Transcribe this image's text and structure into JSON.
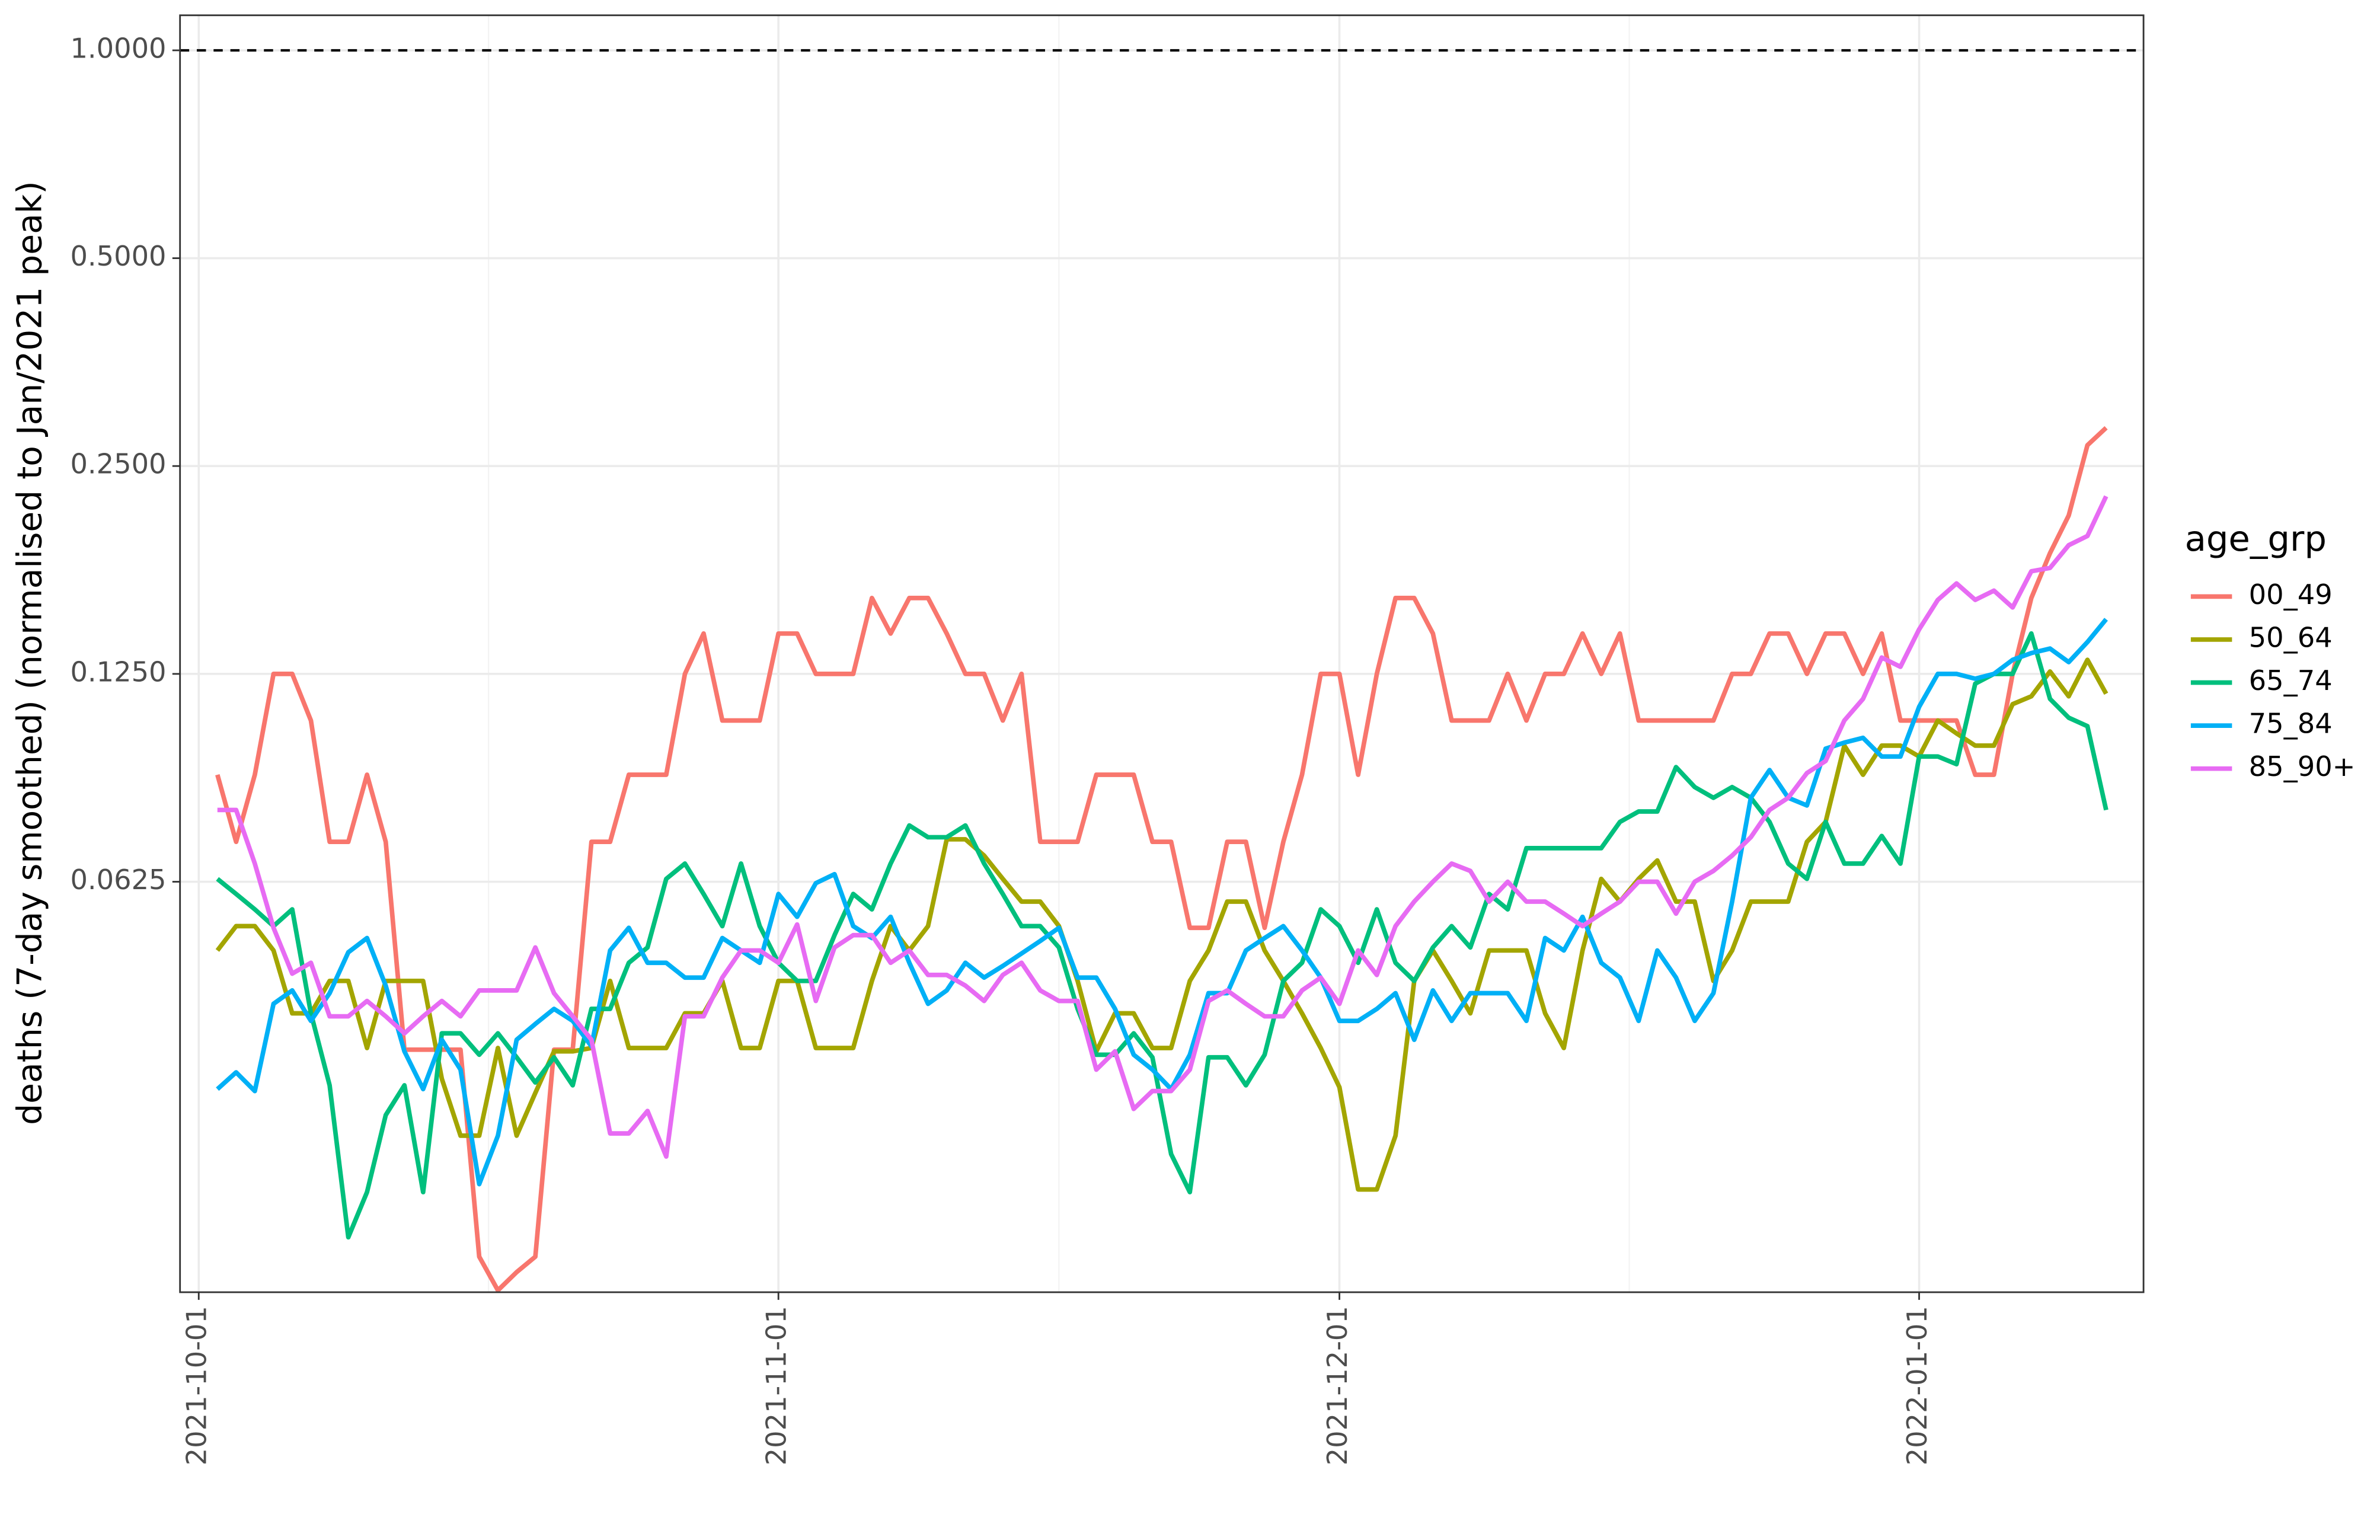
{
  "chart_data": {
    "type": "line",
    "y_label": "deaths (7-day smoothed) (normalised to Jan/2021 peak)",
    "legend_title": "age_grp",
    "legend_position": "right",
    "ylog": true,
    "grid": true,
    "hline": 1,
    "xlim": [
      "2021-09-30",
      "2022-01-13"
    ],
    "xticks": [
      "2021-10-01",
      "2021-11-01",
      "2021-12-01",
      "2022-01-01"
    ],
    "ylim": [
      0.0159,
      1.124
    ],
    "yticks": [
      0.0625,
      {
        "value": 0.125,
        "label": "0.1250"
      },
      {
        "value": 0.25,
        "label": "0.2500"
      },
      {
        "value": 0.5,
        "label": "0.5000"
      },
      {
        "value": 1,
        "label": "1.0000"
      }
    ],
    "x": [
      "2021-10-02",
      "2021-10-03",
      "2021-10-04",
      "2021-10-05",
      "2021-10-06",
      "2021-10-07",
      "2021-10-08",
      "2021-10-09",
      "2021-10-10",
      "2021-10-11",
      "2021-10-12",
      "2021-10-13",
      "2021-10-14",
      "2021-10-15",
      "2021-10-16",
      "2021-10-17",
      "2021-10-18",
      "2021-10-19",
      "2021-10-20",
      "2021-10-21",
      "2021-10-22",
      "2021-10-23",
      "2021-10-24",
      "2021-10-25",
      "2021-10-26",
      "2021-10-27",
      "2021-10-28",
      "2021-10-29",
      "2021-10-30",
      "2021-10-31",
      "2021-11-01",
      "2021-11-02",
      "2021-11-03",
      "2021-11-04",
      "2021-11-05",
      "2021-11-06",
      "2021-11-07",
      "2021-11-08",
      "2021-11-09",
      "2021-11-10",
      "2021-11-11",
      "2021-11-12",
      "2021-11-13",
      "2021-11-14",
      "2021-11-15",
      "2021-11-16",
      "2021-11-17",
      "2021-11-18",
      "2021-11-19",
      "2021-11-20",
      "2021-11-21",
      "2021-11-22",
      "2021-11-23",
      "2021-11-24",
      "2021-11-25",
      "2021-11-26",
      "2021-11-27",
      "2021-11-28",
      "2021-11-29",
      "2021-11-30",
      "2021-12-01",
      "2021-12-02",
      "2021-12-03",
      "2021-12-04",
      "2021-12-05",
      "2021-12-06",
      "2021-12-07",
      "2021-12-08",
      "2021-12-09",
      "2021-12-10",
      "2021-12-11",
      "2021-12-12",
      "2021-12-13",
      "2021-12-14",
      "2021-12-15",
      "2021-12-16",
      "2021-12-17",
      "2021-12-18",
      "2021-12-19",
      "2021-12-20",
      "2021-12-21",
      "2021-12-22",
      "2021-12-23",
      "2021-12-24",
      "2021-12-25",
      "2021-12-26",
      "2021-12-27",
      "2021-12-28",
      "2021-12-29",
      "2021-12-30",
      "2021-12-31",
      "2022-01-01",
      "2022-01-02",
      "2022-01-03",
      "2022-01-04",
      "2022-01-05",
      "2022-01-06",
      "2022-01-07",
      "2022-01-08",
      "2022-01-09",
      "2022-01-10",
      "2022-01-11"
    ],
    "series": [
      {
        "name": "00_49",
        "color": "#F8766D",
        "values": [
          0.0893,
          0.0714,
          0.0893,
          0.125,
          0.125,
          0.107,
          0.0714,
          0.0714,
          0.0893,
          0.0714,
          0.0357,
          0.0357,
          0.0357,
          0.0357,
          0.0179,
          0.016,
          0.017,
          0.0179,
          0.0357,
          0.0357,
          0.0714,
          0.0714,
          0.0893,
          0.0893,
          0.0893,
          0.125,
          0.143,
          0.107,
          0.107,
          0.107,
          0.143,
          0.143,
          0.125,
          0.125,
          0.125,
          0.161,
          0.143,
          0.161,
          0.161,
          0.143,
          0.125,
          0.125,
          0.107,
          0.125,
          0.0714,
          0.0714,
          0.0714,
          0.0893,
          0.0893,
          0.0893,
          0.0714,
          0.0714,
          0.0536,
          0.0536,
          0.0714,
          0.0714,
          0.0536,
          0.0714,
          0.0893,
          0.125,
          0.125,
          0.0893,
          0.125,
          0.161,
          0.161,
          0.143,
          0.107,
          0.107,
          0.107,
          0.125,
          0.107,
          0.125,
          0.125,
          0.143,
          0.125,
          0.143,
          0.107,
          0.107,
          0.107,
          0.107,
          0.107,
          0.125,
          0.125,
          0.143,
          0.143,
          0.125,
          0.143,
          0.143,
          0.125,
          0.143,
          0.107,
          0.107,
          0.107,
          0.107,
          0.0893,
          0.0893,
          0.125,
          0.161,
          0.187,
          0.212,
          0.268,
          0.284
        ]
      },
      {
        "name": "50_64",
        "color": "#A3A500",
        "values": [
          0.0497,
          0.0539,
          0.0539,
          0.0497,
          0.0403,
          0.0403,
          0.0449,
          0.0449,
          0.0359,
          0.0449,
          0.0449,
          0.0449,
          0.0324,
          0.0268,
          0.0268,
          0.0359,
          0.0268,
          0.0309,
          0.0355,
          0.0355,
          0.0359,
          0.0449,
          0.0359,
          0.0359,
          0.0359,
          0.0403,
          0.0403,
          0.0449,
          0.0359,
          0.0359,
          0.0449,
          0.0449,
          0.0359,
          0.0359,
          0.0359,
          0.0449,
          0.0539,
          0.0497,
          0.0539,
          0.072,
          0.072,
          0.0682,
          0.0631,
          0.0585,
          0.0585,
          0.0539,
          0.0449,
          0.0355,
          0.0403,
          0.0403,
          0.0359,
          0.0359,
          0.0449,
          0.0497,
          0.0585,
          0.0585,
          0.0497,
          0.0449,
          0.0403,
          0.0359,
          0.0315,
          0.0224,
          0.0224,
          0.0268,
          0.0449,
          0.0497,
          0.0449,
          0.0403,
          0.0497,
          0.0497,
          0.0497,
          0.0403,
          0.0359,
          0.0497,
          0.0631,
          0.0585,
          0.0631,
          0.0671,
          0.0585,
          0.0585,
          0.0449,
          0.0497,
          0.0585,
          0.0585,
          0.0585,
          0.0714,
          0.0763,
          0.0984,
          0.0893,
          0.0984,
          0.0984,
          0.0949,
          0.107,
          0.1025,
          0.0984,
          0.0984,
          0.113,
          0.116,
          0.126,
          0.116,
          0.131,
          0.117
        ]
      },
      {
        "name": "65_74",
        "color": "#00BF7D",
        "values": [
          0.0631,
          0.06,
          0.057,
          0.0539,
          0.057,
          0.0403,
          0.0317,
          0.0191,
          0.0222,
          0.0287,
          0.0317,
          0.0222,
          0.0377,
          0.0377,
          0.0351,
          0.0377,
          0.0348,
          0.032,
          0.0348,
          0.0317,
          0.0409,
          0.0409,
          0.0477,
          0.0502,
          0.0631,
          0.0664,
          0.06,
          0.0539,
          0.0664,
          0.0539,
          0.0477,
          0.0449,
          0.0449,
          0.0523,
          0.06,
          0.057,
          0.0664,
          0.0754,
          0.0725,
          0.0725,
          0.0754,
          0.0664,
          0.06,
          0.0539,
          0.0539,
          0.0502,
          0.0409,
          0.0351,
          0.0351,
          0.0377,
          0.0348,
          0.0252,
          0.0222,
          0.0348,
          0.0348,
          0.0317,
          0.0351,
          0.0449,
          0.0477,
          0.057,
          0.0539,
          0.0477,
          0.057,
          0.0477,
          0.0449,
          0.0502,
          0.0539,
          0.0502,
          0.06,
          0.057,
          0.0699,
          0.0699,
          0.0699,
          0.0699,
          0.0699,
          0.0763,
          0.079,
          0.079,
          0.0916,
          0.0857,
          0.0827,
          0.0857,
          0.0827,
          0.0763,
          0.0664,
          0.0631,
          0.0763,
          0.0664,
          0.0664,
          0.0728,
          0.0664,
          0.0949,
          0.0949,
          0.0925,
          0.121,
          0.125,
          0.125,
          0.143,
          0.115,
          0.108,
          0.105,
          0.0794
        ]
      },
      {
        "name": "75_84",
        "color": "#00B0F6",
        "values": [
          0.0313,
          0.0331,
          0.0311,
          0.0416,
          0.0435,
          0.0393,
          0.0431,
          0.0494,
          0.0518,
          0.0442,
          0.0355,
          0.0313,
          0.0369,
          0.0334,
          0.0228,
          0.0268,
          0.0369,
          0.0389,
          0.0409,
          0.0393,
          0.0361,
          0.0497,
          0.0536,
          0.0477,
          0.0477,
          0.0454,
          0.0454,
          0.0518,
          0.0497,
          0.0477,
          0.06,
          0.0556,
          0.0622,
          0.0641,
          0.0539,
          0.0518,
          0.0556,
          0.0477,
          0.0416,
          0.0435,
          0.0477,
          0.0454,
          0.0472,
          0.0492,
          0.0513,
          0.0536,
          0.0454,
          0.0454,
          0.0409,
          0.0351,
          0.0334,
          0.0313,
          0.0351,
          0.0431,
          0.0431,
          0.0497,
          0.0518,
          0.0539,
          0.0497,
          0.0454,
          0.0393,
          0.0393,
          0.0409,
          0.0431,
          0.0369,
          0.0435,
          0.0393,
          0.0431,
          0.0431,
          0.0431,
          0.0393,
          0.0518,
          0.0497,
          0.0556,
          0.0477,
          0.0454,
          0.0393,
          0.0497,
          0.0454,
          0.0393,
          0.0431,
          0.0585,
          0.0827,
          0.0907,
          0.0827,
          0.0806,
          0.0974,
          0.0994,
          0.101,
          0.0949,
          0.0949,
          0.112,
          0.125,
          0.125,
          0.123,
          0.125,
          0.131,
          0.134,
          0.136,
          0.13,
          0.139,
          0.15
        ]
      },
      {
        "name": "85_90+",
        "color": "#E76BF3",
        "values": [
          0.0794,
          0.0794,
          0.0664,
          0.0536,
          0.046,
          0.0477,
          0.0399,
          0.0399,
          0.042,
          0.0399,
          0.0377,
          0.0399,
          0.042,
          0.0399,
          0.0435,
          0.0435,
          0.0435,
          0.0502,
          0.0431,
          0.0399,
          0.0369,
          0.027,
          0.027,
          0.0291,
          0.025,
          0.0399,
          0.0399,
          0.0454,
          0.0497,
          0.0497,
          0.0477,
          0.0542,
          0.042,
          0.0502,
          0.0523,
          0.0523,
          0.0477,
          0.0497,
          0.0458,
          0.0458,
          0.0442,
          0.042,
          0.0458,
          0.0477,
          0.0435,
          0.042,
          0.042,
          0.0334,
          0.0355,
          0.0293,
          0.0311,
          0.0311,
          0.0334,
          0.042,
          0.0435,
          0.0416,
          0.0399,
          0.0399,
          0.0435,
          0.0454,
          0.0416,
          0.0497,
          0.0458,
          0.0539,
          0.0585,
          0.0625,
          0.0664,
          0.0648,
          0.0585,
          0.0625,
          0.0585,
          0.0585,
          0.0562,
          0.0539,
          0.0562,
          0.0585,
          0.0625,
          0.0625,
          0.0562,
          0.0625,
          0.0648,
          0.0682,
          0.0725,
          0.0794,
          0.0827,
          0.0898,
          0.0935,
          0.107,
          0.115,
          0.132,
          0.128,
          0.145,
          0.16,
          0.169,
          0.16,
          0.165,
          0.156,
          0.176,
          0.178,
          0.192,
          0.198,
          0.226
        ]
      }
    ]
  }
}
